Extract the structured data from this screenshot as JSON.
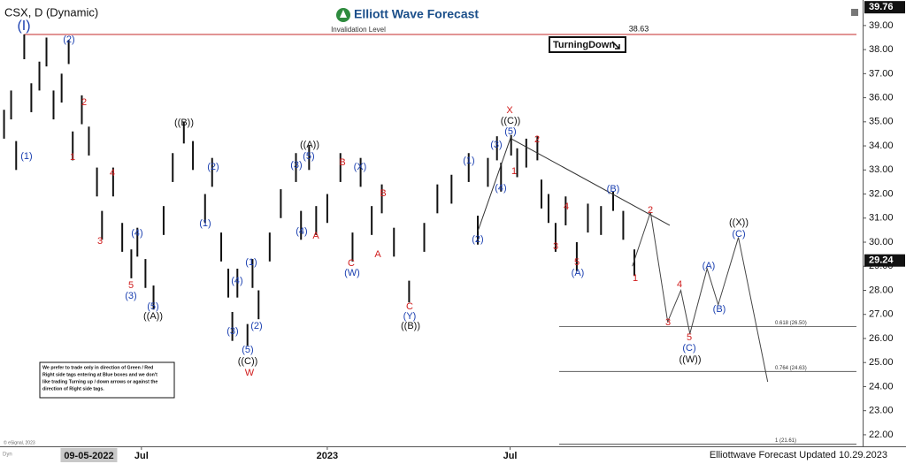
{
  "chart_data": {
    "type": "ohlc",
    "title": "CSX, D (Dynamic)",
    "brand": "Elliott Wave Forecast",
    "signal": "TurningDown",
    "footer": "Elliottwave Forecast Updated 10.29.2023",
    "copyright": "© eSignal, 2023",
    "dyn_label": "Dyn",
    "disclaimer": [
      "We prefer to trade only in direction of Green / Red",
      "Right side tags entering at Blue boxes and we don't",
      "like trading Turning up / down arrows or against the",
      "direction of Right side tags."
    ],
    "xlim": [
      41,
      895
    ],
    "ylim": [
      21.52,
      40.06
    ],
    "yticks": [
      {
        "value": 22,
        "label": "22.00"
      },
      {
        "value": 23,
        "label": "23.00"
      },
      {
        "value": 24,
        "label": "24.00"
      },
      {
        "value": 25,
        "label": "25.00"
      },
      {
        "value": 26,
        "label": "26.00"
      },
      {
        "value": 27,
        "label": "27.00"
      },
      {
        "value": 28,
        "label": "28.00"
      },
      {
        "value": 29,
        "label": "29.00"
      },
      {
        "value": 30,
        "label": "30.00"
      },
      {
        "value": 31,
        "label": "31.00"
      },
      {
        "value": 32,
        "label": "32.00"
      },
      {
        "value": 33,
        "label": "33.00"
      },
      {
        "value": 34,
        "label": "34.00"
      },
      {
        "value": 35,
        "label": "35.00"
      },
      {
        "value": 36,
        "label": "36.00"
      },
      {
        "value": 37,
        "label": "37.00"
      },
      {
        "value": 38,
        "label": "38.00"
      },
      {
        "value": 39,
        "label": "39.00"
      }
    ],
    "xticks": [
      {
        "value": 181,
        "label": "Jul"
      },
      {
        "value": 365,
        "label": "2023"
      },
      {
        "value": 546,
        "label": "Jul"
      }
    ],
    "crosshair": {
      "value": 129,
      "label": "09-05-2022"
    },
    "price_tags": [
      39.76,
      29.24
    ],
    "color": "#111111",
    "x": [
      45,
      52,
      57,
      65,
      72,
      80,
      87,
      94,
      102,
      109,
      113,
      122,
      129,
      137,
      142,
      153,
      162,
      171,
      177,
      185,
      193,
      203,
      212,
      223,
      232,
      244,
      251,
      260,
      267,
      271,
      276,
      286,
      291,
      297,
      308,
      319,
      334,
      339,
      347,
      354,
      365,
      378,
      390,
      398,
      409,
      419,
      431,
      446,
      461,
      474,
      488,
      505,
      514,
      524,
      533,
      537,
      547,
      553,
      562,
      573,
      577,
      584,
      591,
      601,
      612,
      623,
      636,
      648,
      658,
      669
    ],
    "high": [
      35.5,
      36.3,
      34.2,
      38.63,
      36.6,
      37.5,
      38.5,
      36.3,
      37.0,
      38.4,
      34.6,
      36.1,
      34.8,
      33.1,
      31.3,
      33.1,
      30.8,
      29.7,
      30.6,
      29.3,
      28.2,
      31.5,
      33.7,
      35.0,
      34.2,
      32.0,
      33.5,
      30.4,
      28.9,
      27.1,
      28.9,
      26.6,
      29.3,
      28.0,
      30.4,
      32.2,
      33.7,
      31.3,
      34.0,
      31.5,
      32.0,
      33.7,
      30.4,
      33.5,
      31.5,
      32.4,
      30.6,
      28.4,
      30.8,
      32.4,
      32.8,
      33.7,
      31.1,
      33.5,
      34.4,
      33.3,
      34.45,
      33.9,
      34.3,
      34.4,
      32.6,
      32.0,
      30.8,
      31.9,
      30.0,
      31.6,
      31.5,
      32.1,
      31.3,
      29.7
    ],
    "low": [
      34.3,
      35.1,
      33.0,
      37.6,
      35.4,
      36.3,
      37.3,
      35.1,
      35.8,
      37.4,
      33.4,
      34.9,
      33.6,
      31.9,
      30.1,
      31.9,
      29.6,
      28.5,
      29.4,
      28.1,
      27.2,
      30.3,
      32.5,
      34.1,
      33.0,
      30.8,
      32.3,
      29.2,
      27.7,
      25.9,
      27.7,
      25.7,
      28.1,
      26.8,
      29.2,
      31.0,
      32.5,
      30.1,
      33.0,
      30.3,
      30.8,
      32.5,
      29.2,
      32.3,
      30.3,
      31.2,
      29.4,
      27.5,
      29.6,
      31.2,
      31.6,
      32.5,
      29.9,
      32.3,
      33.4,
      32.1,
      33.6,
      32.7,
      33.1,
      33.4,
      31.4,
      30.8,
      29.6,
      30.7,
      28.8,
      30.4,
      30.3,
      31.3,
      30.1,
      28.6
    ],
    "invalidation": {
      "label": "Invalidation Level",
      "value": 38.63,
      "color": "#c62828"
    },
    "fib_levels": [
      {
        "value": 26.5,
        "label": "0.618 (26.50)"
      },
      {
        "value": 24.63,
        "label": "0.764 (24.63)"
      },
      {
        "value": 21.61,
        "label": "1 (21.61)"
      }
    ],
    "projection": {
      "x": [
        667,
        685,
        702,
        715,
        724,
        741,
        752,
        772,
        801
      ],
      "values": [
        29.0,
        31.25,
        26.7,
        28.0,
        26.2,
        28.9,
        27.4,
        30.2,
        24.2
      ]
    },
    "trendlines": [
      {
        "x": [
          514,
          547
        ],
        "values": [
          30.45,
          34.4
        ]
      },
      {
        "x": [
          547,
          704
        ],
        "values": [
          34.3,
          30.7
        ]
      }
    ],
    "wave_labels": [
      {
        "text": "(I)",
        "color": "#1a3fb0"
      },
      {
        "text": "(1)",
        "color": "#1a3fb0"
      },
      {
        "text": "(2)",
        "color": "#1a3fb0"
      },
      {
        "text": "1",
        "color": "#d01c1c"
      },
      {
        "text": "2",
        "color": "#d01c1c"
      },
      {
        "text": "4",
        "color": "#d01c1c"
      },
      {
        "text": "3",
        "color": "#d01c1c"
      },
      {
        "text": "(4)",
        "color": "#1a3fb0"
      },
      {
        "text": "5",
        "color": "#d01c1c"
      },
      {
        "text": "(3)",
        "color": "#1a3fb0"
      },
      {
        "text": "(5)",
        "color": "#1a3fb0"
      },
      {
        "text": "((A))",
        "color": "#111111"
      },
      {
        "text": "((B))",
        "color": "#111111"
      },
      {
        "text": "(2)",
        "color": "#1a3fb0"
      },
      {
        "text": "(1)",
        "color": "#1a3fb0"
      },
      {
        "text": "(1)",
        "color": "#1a3fb0"
      },
      {
        "text": "(4)",
        "color": "#1a3fb0"
      },
      {
        "text": "(3)",
        "color": "#1a3fb0"
      },
      {
        "text": "(2)",
        "color": "#1a3fb0"
      },
      {
        "text": "(5)",
        "color": "#1a3fb0"
      },
      {
        "text": "((C))",
        "color": "#111111"
      },
      {
        "text": "W",
        "color": "#d01c1c"
      },
      {
        "text": "(3)",
        "color": "#1a3fb0"
      },
      {
        "text": "(5)",
        "color": "#1a3fb0"
      },
      {
        "text": "((A))",
        "color": "#111111"
      },
      {
        "text": "(4)",
        "color": "#1a3fb0"
      },
      {
        "text": "A",
        "color": "#d01c1c"
      },
      {
        "text": "B",
        "color": "#d01c1c"
      },
      {
        "text": "(X)",
        "color": "#1a3fb0"
      },
      {
        "text": "B",
        "color": "#d01c1c"
      },
      {
        "text": "C",
        "color": "#d01c1c"
      },
      {
        "text": "(W)",
        "color": "#1a3fb0"
      },
      {
        "text": "A",
        "color": "#d01c1c"
      },
      {
        "text": "C",
        "color": "#d01c1c"
      },
      {
        "text": "(Y)",
        "color": "#1a3fb0"
      },
      {
        "text": "((B))",
        "color": "#111111"
      },
      {
        "text": "(1)",
        "color": "#1a3fb0"
      },
      {
        "text": "(3)",
        "color": "#1a3fb0"
      },
      {
        "text": "(4)",
        "color": "#1a3fb0"
      },
      {
        "text": "(2)",
        "color": "#1a3fb0"
      },
      {
        "text": "(5)",
        "color": "#1a3fb0"
      },
      {
        "text": "((C))",
        "color": "#111111"
      },
      {
        "text": "X",
        "color": "#d01c1c"
      },
      {
        "text": "1",
        "color": "#d01c1c"
      },
      {
        "text": "2",
        "color": "#d01c1c"
      },
      {
        "text": "4",
        "color": "#d01c1c"
      },
      {
        "text": "3",
        "color": "#d01c1c"
      },
      {
        "text": "5",
        "color": "#d01c1c"
      },
      {
        "text": "(A)",
        "color": "#1a3fb0"
      },
      {
        "text": "(B)",
        "color": "#1a3fb0"
      },
      {
        "text": "1",
        "color": "#d01c1c"
      },
      {
        "text": "2",
        "color": "#d01c1c"
      },
      {
        "text": "4",
        "color": "#d01c1c"
      },
      {
        "text": "3",
        "color": "#d01c1c"
      },
      {
        "text": "5",
        "color": "#d01c1c"
      },
      {
        "text": "(C)",
        "color": "#1a3fb0"
      },
      {
        "text": "((W))",
        "color": "#111111"
      },
      {
        "text": "(A)",
        "color": "#1a3fb0"
      },
      {
        "text": "(B)",
        "color": "#1a3fb0"
      },
      {
        "text": "((X))",
        "color": "#111111"
      },
      {
        "text": "(C)",
        "color": "#1a3fb0"
      }
    ]
  }
}
